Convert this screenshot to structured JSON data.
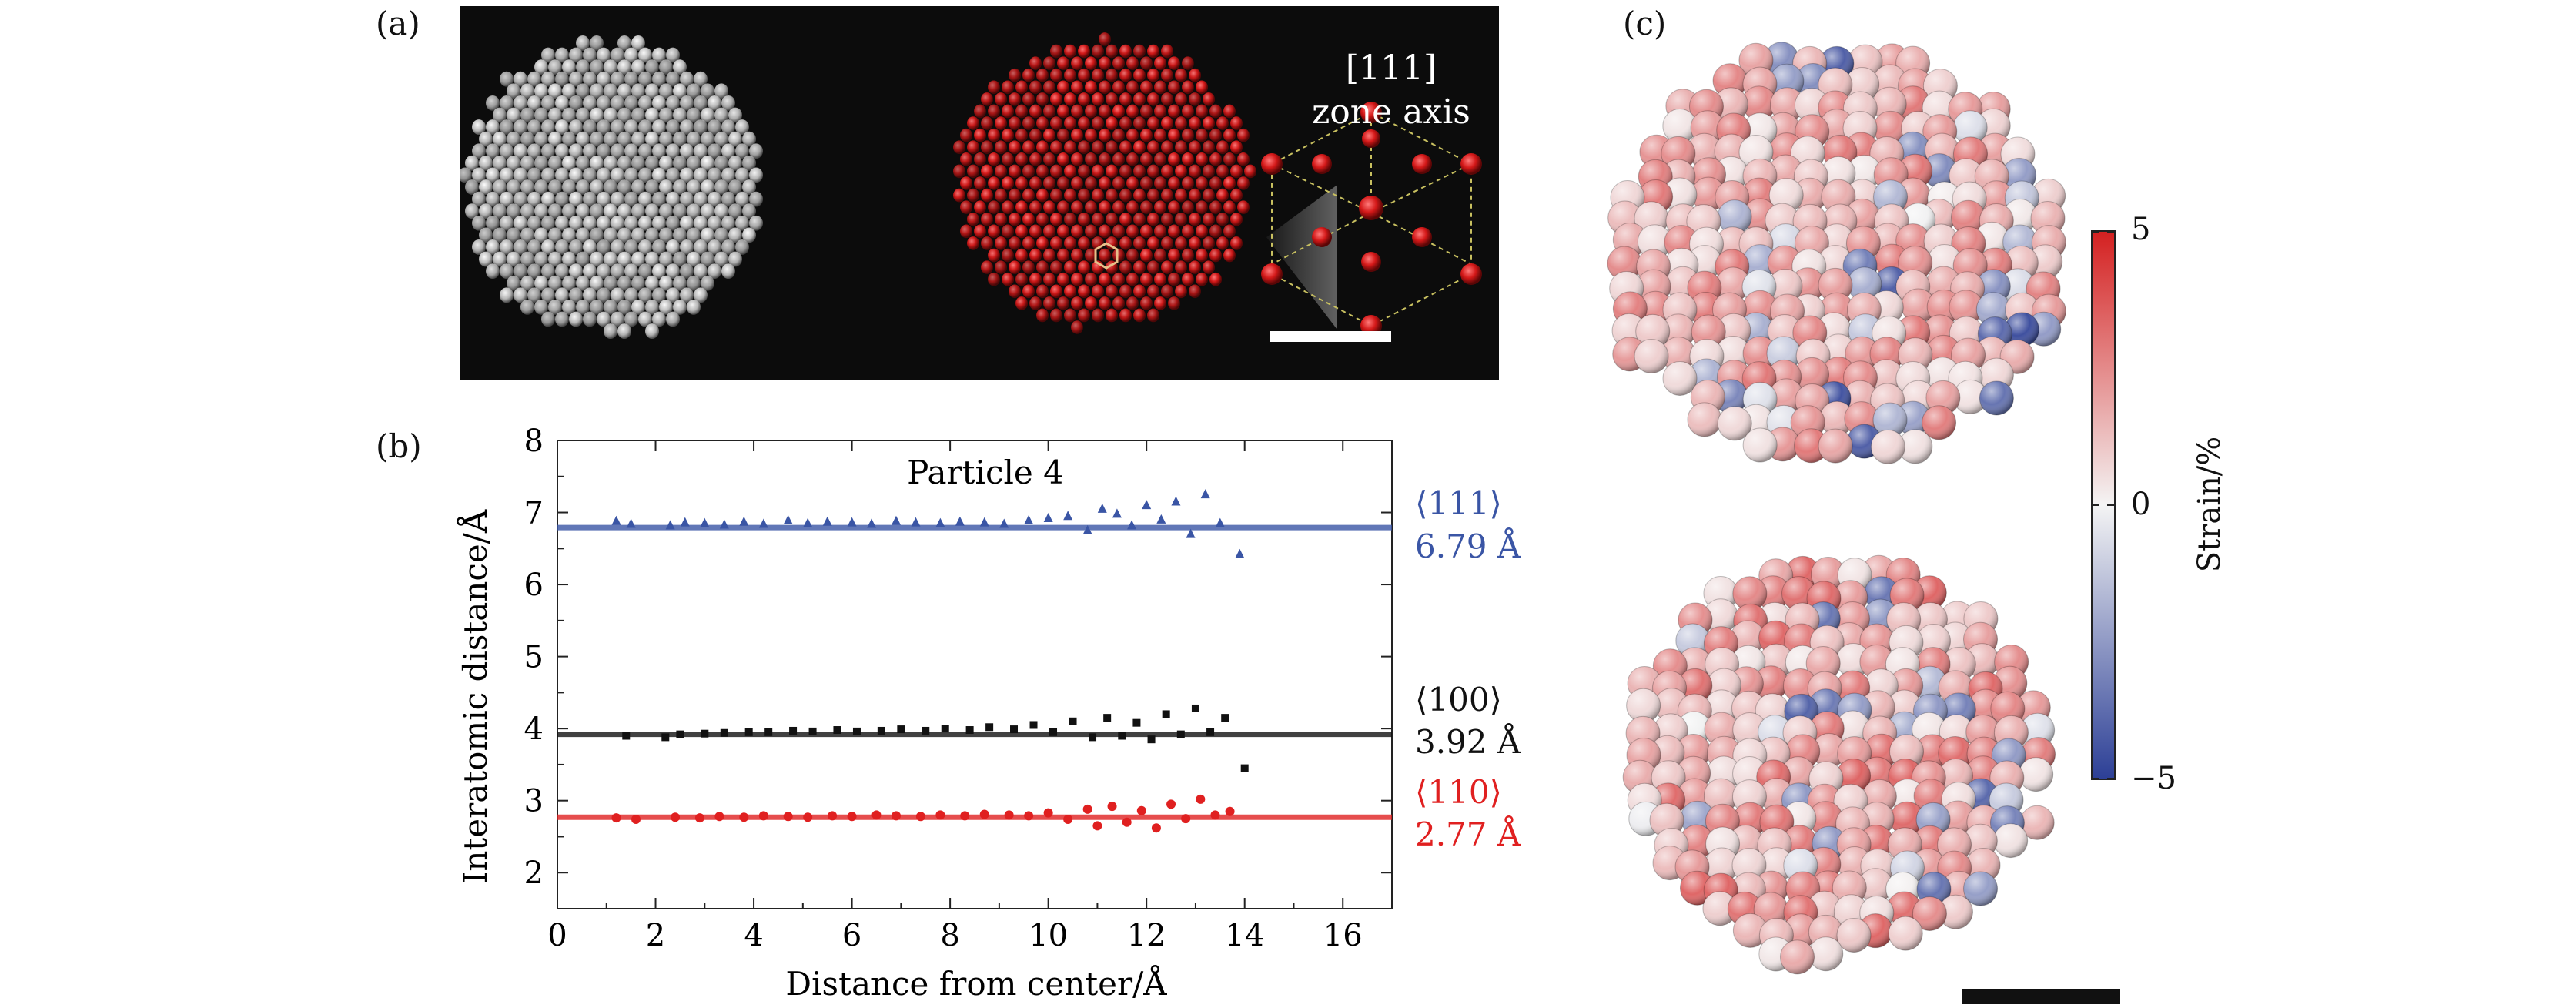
{
  "panel_labels": {
    "a": "(a)",
    "b": "(b)",
    "c": "(c)"
  },
  "panel_a": {
    "zone_axis_line1": "[111]",
    "zone_axis_line2": "zone axis"
  },
  "chart_data": {
    "type": "scatter",
    "title": "Particle 4",
    "xlabel": "Distance from center/Å",
    "ylabel": "Interatomic distance/Å",
    "xlim": [
      0,
      17
    ],
    "ylim": [
      1.5,
      8
    ],
    "xticks": [
      0,
      2,
      4,
      6,
      8,
      10,
      12,
      14,
      16
    ],
    "yticks": [
      2,
      3,
      4,
      5,
      6,
      7,
      8
    ],
    "grid": false,
    "series": [
      {
        "name": "⟨111⟩",
        "value_label": "6.79 Å",
        "mean": 6.79,
        "color": "#3a55a5",
        "marker": "triangle",
        "x": [
          1.2,
          1.5,
          2.3,
          2.6,
          3.0,
          3.4,
          3.8,
          4.2,
          4.7,
          5.1,
          5.5,
          6.0,
          6.4,
          6.9,
          7.3,
          7.8,
          8.2,
          8.7,
          9.1,
          9.6,
          10.0,
          10.4,
          10.8,
          11.1,
          11.4,
          11.7,
          12.0,
          12.3,
          12.6,
          12.9,
          13.2,
          13.5,
          13.9
        ],
        "y": [
          6.88,
          6.84,
          6.82,
          6.86,
          6.85,
          6.83,
          6.87,
          6.84,
          6.89,
          6.85,
          6.87,
          6.86,
          6.84,
          6.88,
          6.86,
          6.85,
          6.87,
          6.86,
          6.84,
          6.89,
          6.92,
          6.95,
          6.75,
          7.05,
          6.98,
          6.82,
          7.1,
          6.9,
          7.15,
          6.7,
          7.25,
          6.85,
          6.42
        ]
      },
      {
        "name": "⟨100⟩",
        "value_label": "3.92 Å",
        "mean": 3.92,
        "color": "#111111",
        "marker": "square",
        "x": [
          1.4,
          2.2,
          2.5,
          3.0,
          3.4,
          3.9,
          4.3,
          4.8,
          5.2,
          5.7,
          6.1,
          6.6,
          7.0,
          7.5,
          7.9,
          8.4,
          8.8,
          9.3,
          9.7,
          10.1,
          10.5,
          10.9,
          11.2,
          11.5,
          11.8,
          12.1,
          12.4,
          12.7,
          13.0,
          13.3,
          13.6,
          14.0
        ],
        "y": [
          3.9,
          3.88,
          3.92,
          3.93,
          3.94,
          3.95,
          3.95,
          3.97,
          3.96,
          3.98,
          3.96,
          3.97,
          3.99,
          3.97,
          4.0,
          3.98,
          4.02,
          3.99,
          4.05,
          3.95,
          4.1,
          3.88,
          4.15,
          3.9,
          4.08,
          3.85,
          4.2,
          3.92,
          4.28,
          3.95,
          4.15,
          3.45
        ]
      },
      {
        "name": "⟨110⟩",
        "value_label": "2.77 Å",
        "mean": 2.77,
        "color": "#e02020",
        "marker": "circle",
        "x": [
          1.2,
          1.6,
          2.4,
          2.9,
          3.3,
          3.8,
          4.2,
          4.7,
          5.1,
          5.6,
          6.0,
          6.5,
          6.9,
          7.4,
          7.8,
          8.3,
          8.7,
          9.2,
          9.6,
          10.0,
          10.4,
          10.8,
          11.0,
          11.3,
          11.6,
          11.9,
          12.2,
          12.5,
          12.8,
          13.1,
          13.4,
          13.7
        ],
        "y": [
          2.76,
          2.74,
          2.77,
          2.76,
          2.78,
          2.77,
          2.79,
          2.78,
          2.77,
          2.79,
          2.78,
          2.8,
          2.79,
          2.78,
          2.8,
          2.79,
          2.81,
          2.8,
          2.79,
          2.83,
          2.74,
          2.88,
          2.65,
          2.92,
          2.7,
          2.86,
          2.62,
          2.95,
          2.75,
          3.02,
          2.8,
          2.85
        ]
      }
    ]
  },
  "colorbar": {
    "label": "Strain/%",
    "max": "5",
    "mid": "0",
    "min": "−5",
    "colors": [
      "#2c3f96",
      "#f4f4f4",
      "#d42020"
    ]
  }
}
